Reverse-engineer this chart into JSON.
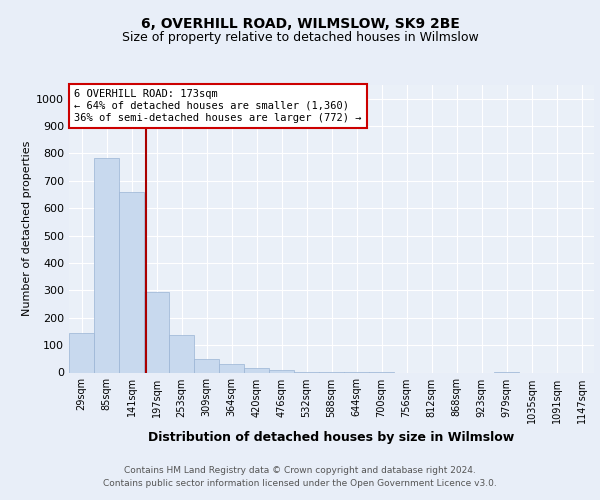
{
  "title": "6, OVERHILL ROAD, WILMSLOW, SK9 2BE",
  "subtitle": "Size of property relative to detached houses in Wilmslow",
  "xlabel": "Distribution of detached houses by size in Wilmslow",
  "ylabel": "Number of detached properties",
  "bar_color": "#c8d9ee",
  "bar_edge_color": "#9ab4d4",
  "background_color": "#e8eef8",
  "plot_bg_color": "#eaf0f8",
  "grid_color": "#ffffff",
  "categories": [
    "29sqm",
    "85sqm",
    "141sqm",
    "197sqm",
    "253sqm",
    "309sqm",
    "364sqm",
    "420sqm",
    "476sqm",
    "532sqm",
    "588sqm",
    "644sqm",
    "700sqm",
    "756sqm",
    "812sqm",
    "868sqm",
    "923sqm",
    "979sqm",
    "1035sqm",
    "1091sqm",
    "1147sqm"
  ],
  "values": [
    143,
    783,
    660,
    293,
    137,
    50,
    30,
    15,
    8,
    3,
    2,
    1,
    2,
    0,
    0,
    0,
    0,
    2,
    0,
    0,
    0
  ],
  "ylim": [
    0,
    1050
  ],
  "yticks": [
    0,
    100,
    200,
    300,
    400,
    500,
    600,
    700,
    800,
    900,
    1000
  ],
  "annotation_text": "6 OVERHILL ROAD: 173sqm\n← 64% of detached houses are smaller (1,360)\n36% of semi-detached houses are larger (772) →",
  "annotation_box_color": "#ffffff",
  "annotation_box_edge": "#cc0000",
  "property_line_color": "#aa0000",
  "footer_line1": "Contains HM Land Registry data © Crown copyright and database right 2024.",
  "footer_line2": "Contains public sector information licensed under the Open Government Licence v3.0."
}
